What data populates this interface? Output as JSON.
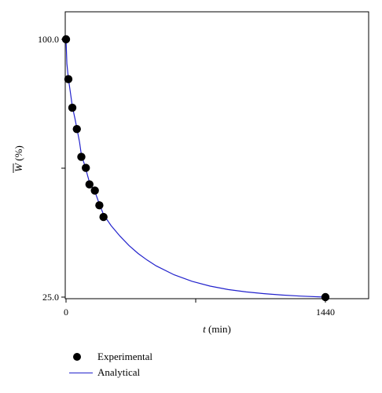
{
  "chart_data": {
    "type": "scatter",
    "title": "",
    "xlabel_italic": "t",
    "xlabel_unit": " (min)",
    "ylabel_italic": "W",
    "ylabel_unit": " (%)",
    "xlim": [
      0,
      1440
    ],
    "ylim": [
      25,
      100
    ],
    "x_ticks": [
      0,
      1440
    ],
    "x_tick_labels": [
      "0",
      "1440"
    ],
    "y_tick_labels": [
      "100.0",
      "25.0"
    ],
    "y_ticks": [
      100,
      25
    ],
    "y_minor_tick": 62.5,
    "x_minor_tick": 720,
    "series": [
      {
        "name": "Experimental",
        "kind": "points",
        "color": "#000000",
        "x": [
          0,
          13,
          35,
          60,
          85,
          110,
          130,
          160,
          185,
          208,
          1440
        ],
        "y": [
          100,
          88.4,
          80.1,
          73.9,
          65.8,
          62.6,
          57.8,
          56.0,
          51.7,
          48.3,
          25.0
        ]
      },
      {
        "name": "Analytical",
        "kind": "line",
        "color": "#2222cc",
        "x": [
          0,
          5,
          13,
          25,
          35,
          50,
          60,
          75,
          85,
          100,
          110,
          130,
          160,
          185,
          208,
          250,
          300,
          350,
          400,
          450,
          500,
          600,
          700,
          800,
          900,
          1000,
          1100,
          1200,
          1300,
          1440
        ],
        "y": [
          100,
          92.9,
          88.6,
          84.3,
          80.5,
          76.8,
          74.1,
          70.1,
          66.4,
          64.0,
          62.2,
          58.4,
          55.7,
          52.1,
          49.0,
          45.8,
          42.7,
          40.0,
          37.7,
          35.8,
          34.1,
          31.5,
          29.6,
          28.2,
          27.2,
          26.5,
          26.0,
          25.6,
          25.3,
          25.0
        ]
      }
    ]
  }
}
